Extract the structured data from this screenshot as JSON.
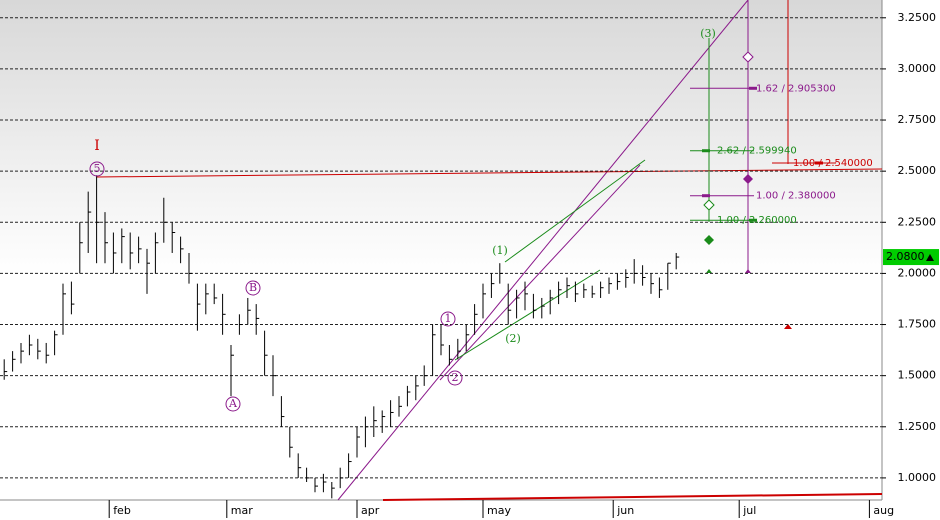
{
  "chart_data": {
    "type": "ohlc",
    "x": [
      7,
      9,
      11,
      13,
      15,
      17,
      19,
      21,
      23,
      25,
      27,
      29,
      31,
      33,
      35,
      37,
      39,
      41,
      43,
      45,
      47,
      49,
      51,
      53,
      55,
      57,
      59,
      61,
      63,
      65,
      67,
      69,
      71,
      73,
      75,
      77,
      79,
      81,
      83,
      85,
      87,
      89,
      91,
      93,
      95,
      97,
      99,
      101,
      103,
      105,
      107,
      109,
      111,
      113,
      115,
      117,
      119,
      121,
      123,
      125,
      127,
      129,
      131,
      133,
      135,
      137,
      139,
      141,
      143,
      145,
      147,
      149,
      151,
      153,
      155,
      157,
      159,
      161,
      163,
      165,
      167
    ],
    "high": [
      1.58,
      1.62,
      1.66,
      1.7,
      1.68,
      1.66,
      1.72,
      1.95,
      1.96,
      2.25,
      2.4,
      2.48,
      2.3,
      2.2,
      2.22,
      2.2,
      2.18,
      2.12,
      2.2,
      2.37,
      2.25,
      2.18,
      2.1,
      1.95,
      1.95,
      1.95,
      1.9,
      1.65,
      1.8,
      1.88,
      1.85,
      1.72,
      1.6,
      1.4,
      1.25,
      1.12,
      1.05,
      1.0,
      1.02,
      0.98,
      1.05,
      1.12,
      1.25,
      1.3,
      1.35,
      1.33,
      1.38,
      1.4,
      1.45,
      1.5,
      1.55,
      1.75,
      1.75,
      1.65,
      1.68,
      1.75,
      1.85,
      1.95,
      2.0,
      2.05,
      1.95,
      1.92,
      1.96,
      1.9,
      1.88,
      1.92,
      1.96,
      1.98,
      1.96,
      1.95,
      1.94,
      1.96,
      1.98,
      2.0,
      2.02,
      2.07,
      2.04,
      2.0,
      1.98,
      2.05,
      2.1
    ],
    "low": [
      1.48,
      1.52,
      1.56,
      1.6,
      1.58,
      1.56,
      1.6,
      1.7,
      1.8,
      2.0,
      2.1,
      2.05,
      2.05,
      2.0,
      2.05,
      2.02,
      2.05,
      1.9,
      2.0,
      2.15,
      2.1,
      2.05,
      1.95,
      1.72,
      1.8,
      1.85,
      1.7,
      1.4,
      1.7,
      1.75,
      1.7,
      1.5,
      1.4,
      1.25,
      1.1,
      1.0,
      0.98,
      0.93,
      0.93,
      0.9,
      0.95,
      1.0,
      1.1,
      1.15,
      1.2,
      1.22,
      1.25,
      1.3,
      1.35,
      1.38,
      1.45,
      1.5,
      1.6,
      1.55,
      1.58,
      1.62,
      1.7,
      1.78,
      1.88,
      1.95,
      1.75,
      1.78,
      1.82,
      1.78,
      1.78,
      1.8,
      1.85,
      1.88,
      1.86,
      1.88,
      1.88,
      1.88,
      1.9,
      1.92,
      1.93,
      1.95,
      1.94,
      1.9,
      1.88,
      1.92,
      2.02
    ],
    "close": [
      1.52,
      1.58,
      1.62,
      1.65,
      1.62,
      1.6,
      1.7,
      1.9,
      1.85,
      2.15,
      2.3,
      2.25,
      2.15,
      2.1,
      2.18,
      2.1,
      2.12,
      2.05,
      2.15,
      2.25,
      2.2,
      2.12,
      2.0,
      1.85,
      1.9,
      1.88,
      1.8,
      1.6,
      1.75,
      1.82,
      1.78,
      1.6,
      1.5,
      1.3,
      1.15,
      1.05,
      1.0,
      0.96,
      0.98,
      0.95,
      1.0,
      1.08,
      1.2,
      1.25,
      1.28,
      1.3,
      1.32,
      1.35,
      1.42,
      1.45,
      1.5,
      1.7,
      1.65,
      1.58,
      1.62,
      1.7,
      1.8,
      1.9,
      1.95,
      2.0,
      1.82,
      1.88,
      1.9,
      1.82,
      1.84,
      1.88,
      1.92,
      1.94,
      1.9,
      1.92,
      1.9,
      1.93,
      1.95,
      1.96,
      1.98,
      2.0,
      1.98,
      1.95,
      1.92,
      2.05,
      2.08
    ],
    "color": "#000000",
    "ylim": [
      0.892,
      3.337
    ],
    "yticks": [
      {
        "value": 1,
        "label": "1.0000"
      },
      {
        "value": 1.25,
        "label": "1.2500"
      },
      {
        "value": 1.5,
        "label": "1.5000"
      },
      {
        "value": 1.75,
        "label": "1.7500"
      },
      {
        "value": 2,
        "label": "2.0000"
      },
      {
        "value": 2.25,
        "label": "2.2500"
      },
      {
        "value": 2.5,
        "label": "2.5000"
      },
      {
        "value": 2.75,
        "label": "2.7500"
      },
      {
        "value": 3,
        "label": "3.0000"
      },
      {
        "value": 3.25,
        "label": "3.2500"
      }
    ],
    "xlim": [
      6,
      216
    ],
    "xticks": [
      {
        "value": 32,
        "label": "feb"
      },
      {
        "value": 60,
        "label": "mar"
      },
      {
        "value": 91,
        "label": "apr"
      },
      {
        "value": 121,
        "label": "may"
      },
      {
        "value": 152,
        "label": "jun"
      },
      {
        "value": 182,
        "label": "jul"
      },
      {
        "value": 213,
        "label": "aug"
      }
    ],
    "grid": true,
    "last_price": {
      "value": 2.08,
      "label": "2.0800"
    },
    "levels": [
      {
        "value": 2.9053,
        "label": "1.62 / 2.905300",
        "color": "#8b1a8b"
      },
      {
        "value": 2.5999,
        "label": "2.62 / 2.599940",
        "color": "#1a8b1a"
      },
      {
        "value": 2.54,
        "label": "1.00 / 2.540000",
        "color": "#cc0000"
      },
      {
        "value": 2.38,
        "label": "1.00 / 2.380000",
        "color": "#8b1a8b"
      },
      {
        "value": 2.26,
        "label": "1.00 / 2.260000",
        "color": "#1a8b1a"
      }
    ],
    "wave_labels": [
      "I",
      "5",
      "A",
      "B",
      "1",
      "2",
      "(1)",
      "(2)",
      "(3)"
    ]
  }
}
